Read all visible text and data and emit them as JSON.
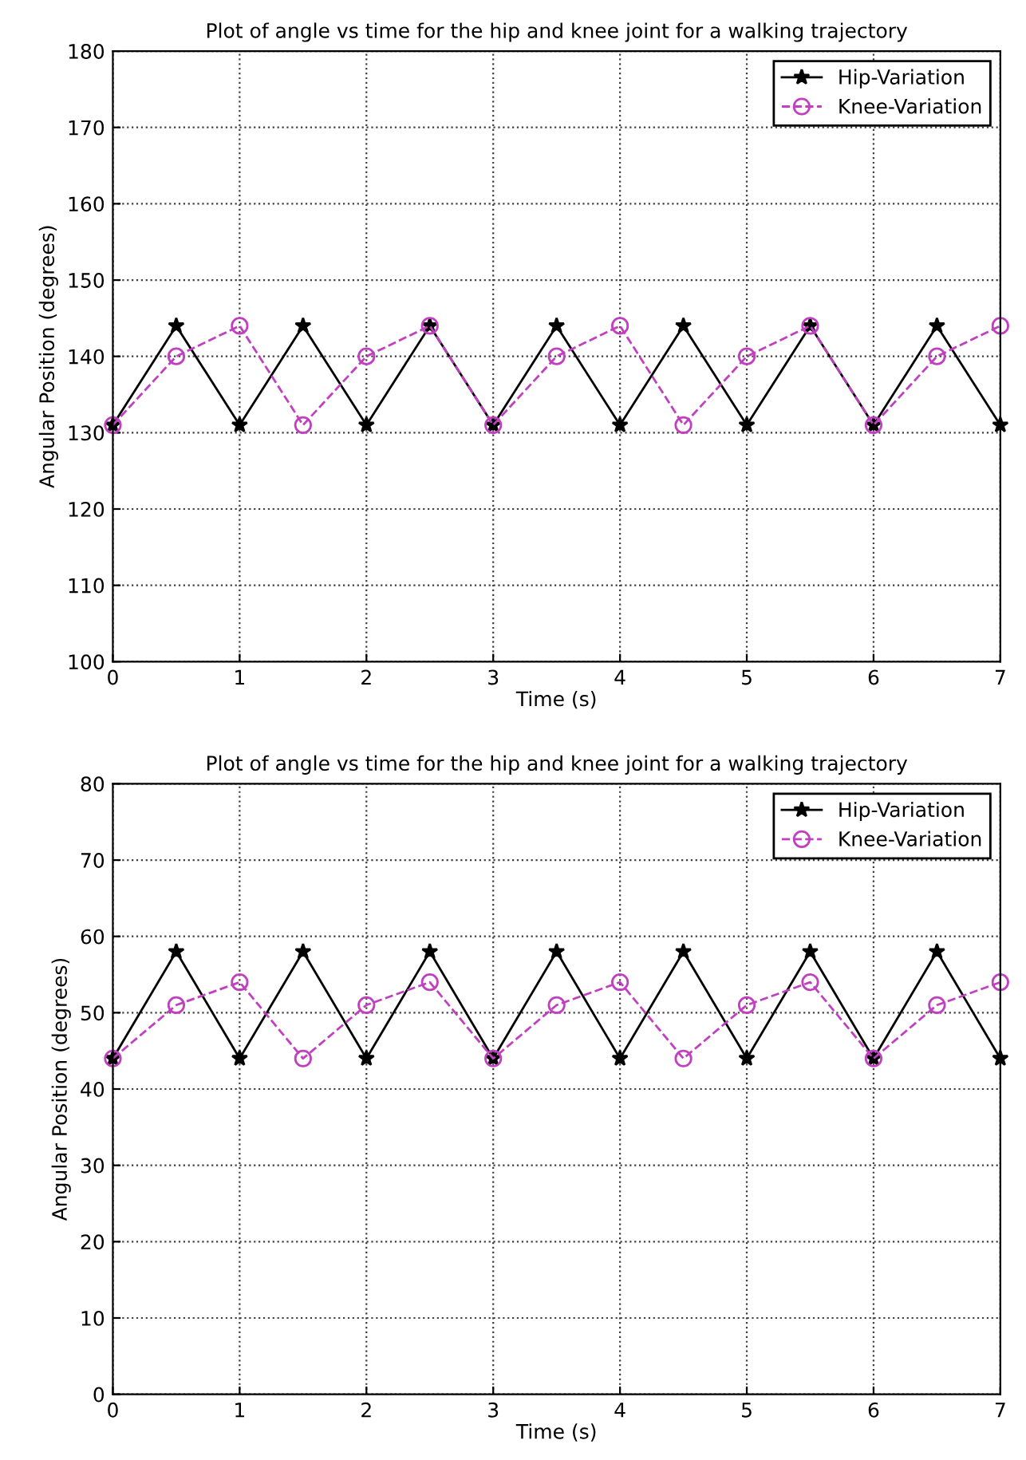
{
  "chart_data": [
    {
      "type": "line",
      "title": "Plot of angle vs time for the hip and knee joint for a walking trajectory",
      "xlabel": "Time (s)",
      "ylabel": "Angular Position (degrees)",
      "x": [
        0,
        0.5,
        1,
        1.5,
        2,
        2.5,
        3,
        3.5,
        4,
        4.5,
        5,
        5.5,
        6,
        6.5,
        7
      ],
      "series": [
        {
          "name": "Hip-Variation",
          "color": "#000000",
          "marker": "star",
          "line_style": "solid",
          "values": [
            131,
            144,
            131,
            144,
            131,
            144,
            131,
            144,
            131,
            144,
            131,
            144,
            131,
            144,
            131
          ]
        },
        {
          "name": "Knee-Variation",
          "color": "#c040c0",
          "marker": "circle",
          "line_style": "dashed",
          "values": [
            131,
            140,
            144,
            131,
            140,
            144,
            131,
            140,
            144,
            131,
            140,
            144,
            131,
            140,
            144
          ]
        }
      ],
      "xlim": [
        0,
        7
      ],
      "xticks": [
        0,
        1,
        2,
        3,
        4,
        5,
        6,
        7
      ],
      "ylim": [
        100,
        180
      ],
      "yticks": [
        100,
        110,
        120,
        130,
        140,
        150,
        160,
        170,
        180
      ],
      "grid": true,
      "legend": "top right"
    },
    {
      "type": "line",
      "title": "Plot of angle vs time for the hip and knee joint for a walking trajectory",
      "xlabel": "Time (s)",
      "ylabel": "Angular Position (degrees)",
      "x": [
        0,
        0.5,
        1,
        1.5,
        2,
        2.5,
        3,
        3.5,
        4,
        4.5,
        5,
        5.5,
        6,
        6.5,
        7
      ],
      "series": [
        {
          "name": "Hip-Variation",
          "color": "#000000",
          "marker": "star",
          "line_style": "solid",
          "values": [
            44,
            58,
            44,
            58,
            44,
            58,
            44,
            58,
            44,
            58,
            44,
            58,
            44,
            58,
            44
          ]
        },
        {
          "name": "Knee-Variation",
          "color": "#c040c0",
          "marker": "circle",
          "line_style": "dashed",
          "values": [
            44,
            51,
            54,
            44,
            51,
            54,
            44,
            51,
            54,
            44,
            51,
            54,
            44,
            51,
            54
          ]
        }
      ],
      "xlim": [
        0,
        7
      ],
      "xticks": [
        0,
        1,
        2,
        3,
        4,
        5,
        6,
        7
      ],
      "ylim": [
        0,
        80
      ],
      "yticks": [
        0,
        10,
        20,
        30,
        40,
        50,
        60,
        70,
        80
      ],
      "grid": true,
      "legend": "top right"
    }
  ]
}
